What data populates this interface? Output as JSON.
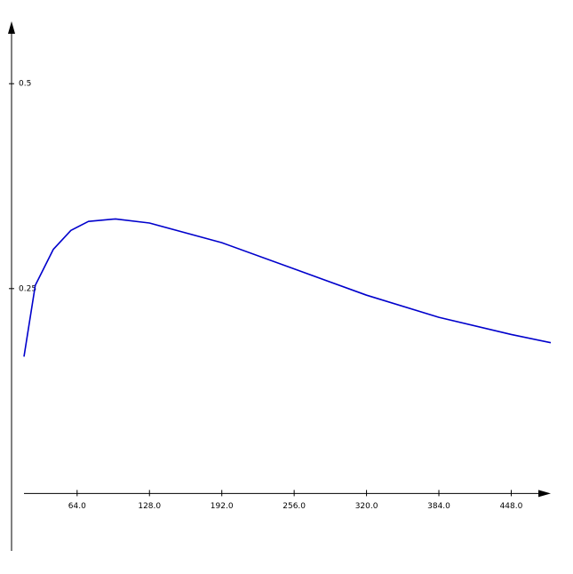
{
  "chart_data": {
    "type": "line",
    "x": [
      17,
      27,
      43,
      58.5,
      74,
      98,
      128,
      192,
      256,
      320,
      384,
      448,
      483
    ],
    "series": [
      {
        "color": "#0000cc",
        "values": [
          0.167,
          0.254,
          0.298,
          0.321,
          0.332,
          0.335,
          0.33,
          0.306,
          0.274,
          0.242,
          0.215,
          0.194,
          0.184
        ]
      }
    ],
    "xlim": [
      17,
      483
    ],
    "ylim": [
      -0.07,
      0.575
    ],
    "xticks": [
      {
        "value": 64,
        "label": "64.0"
      },
      {
        "value": 128,
        "label": "128.0"
      },
      {
        "value": 192,
        "label": "192.0"
      },
      {
        "value": 256,
        "label": "256.0"
      },
      {
        "value": 320,
        "label": "320.0"
      },
      {
        "value": 384,
        "label": "384.0"
      },
      {
        "value": 448,
        "label": "448.0"
      }
    ],
    "yticks": [
      0.25,
      0.5
    ]
  }
}
